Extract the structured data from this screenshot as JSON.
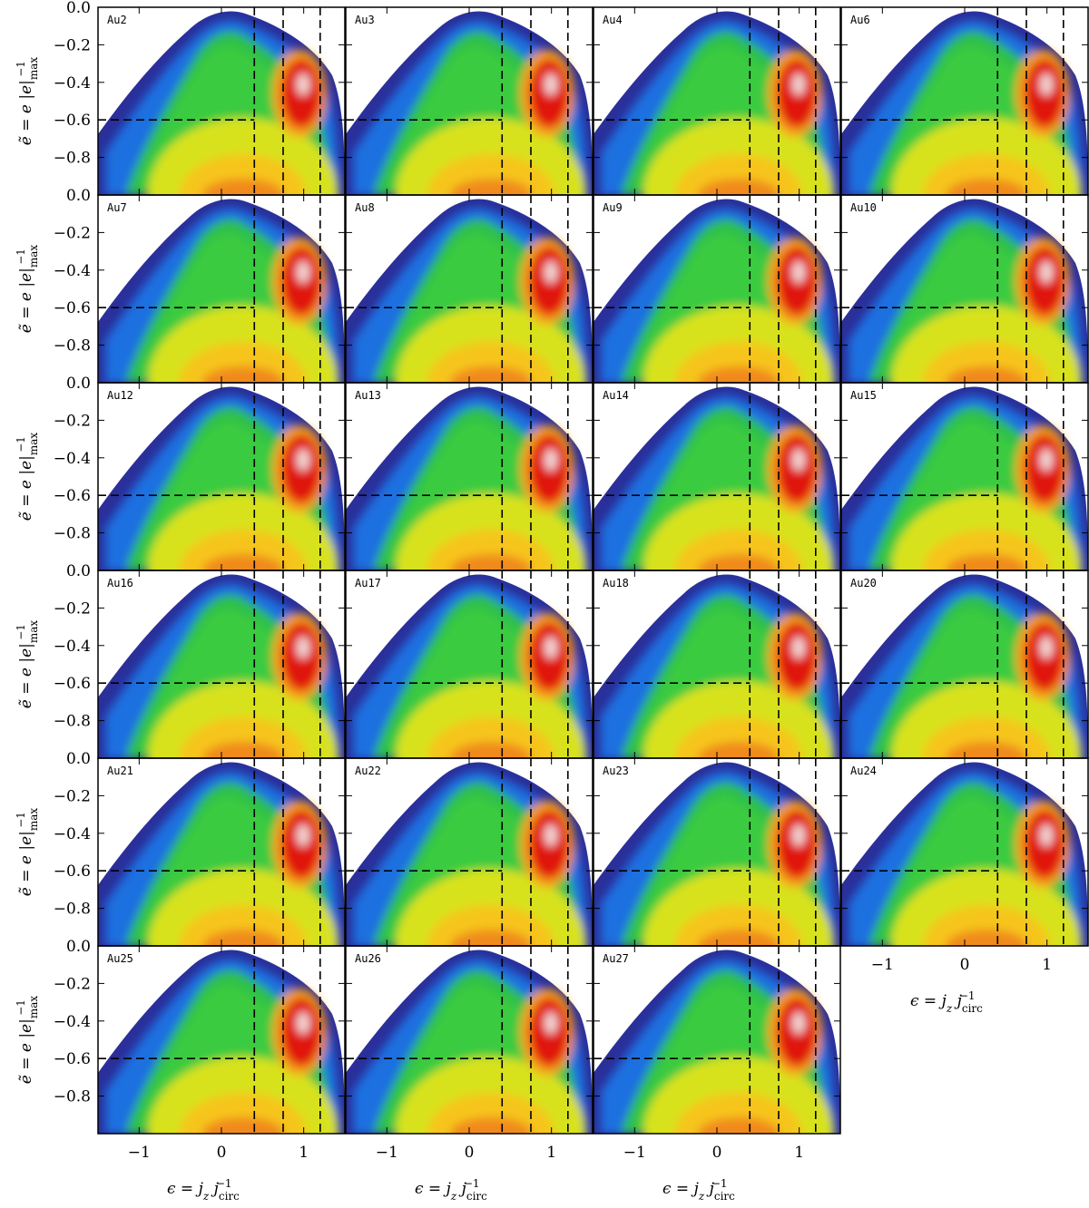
{
  "chart_data": {
    "type": "heatmap",
    "panels": [
      "Au2",
      "Au3",
      "Au4",
      "Au6",
      "Au7",
      "Au8",
      "Au9",
      "Au10",
      "Au12",
      "Au13",
      "Au14",
      "Au15",
      "Au16",
      "Au17",
      "Au18",
      "Au20",
      "Au21",
      "Au22",
      "Au23",
      "Au24",
      "Au25",
      "Au26",
      "Au27"
    ],
    "xlim": [
      -1.5,
      1.5
    ],
    "ylim": [
      -1.0,
      0.0
    ],
    "xticks": [
      {
        "value": -1,
        "label": "−1"
      },
      0,
      1
    ],
    "yticks": [
      {
        "value": 0.0,
        "label": "0.0"
      },
      {
        "value": -0.2,
        "label": "−0.2"
      },
      {
        "value": -0.4,
        "label": "−0.4"
      },
      {
        "value": -0.6,
        "label": "−0.6"
      },
      {
        "value": -0.8,
        "label": "−0.8"
      }
    ],
    "vlines": [
      0.4,
      0.75,
      1.2
    ],
    "hline": -0.6,
    "xlabel": {
      "a": "ϵ = j",
      "a_sub": "z",
      "b": " j",
      "b_sub": "circ",
      "b_sup": "−1"
    },
    "ylabel": {
      "main": "ẽ = e |e|",
      "sub": "max",
      "sup": "−1"
    }
  }
}
